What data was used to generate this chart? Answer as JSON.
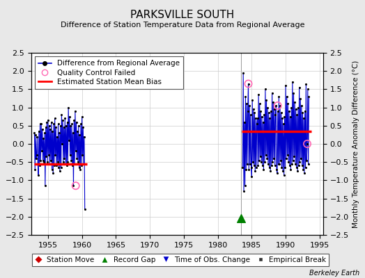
{
  "title": "PARKSVILLE SOUTH",
  "subtitle": "Difference of Station Temperature Data from Regional Average",
  "ylabel": "Monthly Temperature Anomaly Difference (°C)",
  "xlabel_credit": "Berkeley Earth",
  "xlim": [
    1952.5,
    1995.5
  ],
  "ylim": [
    -2.5,
    2.5
  ],
  "yticks": [
    -2.5,
    -2,
    -1.5,
    -1,
    -0.5,
    0,
    0.5,
    1,
    1.5,
    2,
    2.5
  ],
  "xticks": [
    1955,
    1960,
    1965,
    1970,
    1975,
    1980,
    1985,
    1990,
    1995
  ],
  "segment1_x_start": 1953.0,
  "segment1_x_end": 1960.8,
  "segment1_bias": -0.55,
  "segment2_x_start": 1983.5,
  "segment2_x_end": 1993.8,
  "segment2_bias": 0.35,
  "vertical_line_x": 1983.4,
  "record_gap_x": 1983.4,
  "record_gap_y": -2.05,
  "qc_fail_points": [
    [
      1959.08,
      -1.15
    ],
    [
      1984.5,
      1.65
    ],
    [
      1988.83,
      1.05
    ],
    [
      1993.17,
      0.0
    ]
  ],
  "seg1_months": [
    [
      1953,
      [
        0.3,
        -0.7,
        0.25,
        -0.4,
        -0.3,
        0.2,
        -0.55,
        -0.85,
        0.35,
        -0.6,
        0.55,
        -0.45
      ]
    ],
    [
      1954,
      [
        0.55,
        -0.2,
        0.4,
        -0.45,
        0.15,
        -0.5,
        0.3,
        -1.15,
        0.45,
        -0.35,
        0.6,
        -0.5
      ]
    ],
    [
      1955,
      [
        0.65,
        -0.3,
        0.5,
        -0.55,
        0.4,
        -0.45,
        0.6,
        -0.7,
        0.35,
        -0.8,
        0.55,
        -0.6
      ]
    ],
    [
      1956,
      [
        0.7,
        -0.3,
        0.45,
        -0.6,
        0.2,
        -0.5,
        0.55,
        -0.65,
        0.3,
        -0.75,
        0.5,
        -0.65
      ]
    ],
    [
      1957,
      [
        0.8,
        0.0,
        0.65,
        -0.5,
        0.45,
        -0.4,
        0.7,
        -0.55,
        0.5,
        -0.6,
        0.6,
        -0.5
      ]
    ],
    [
      1958,
      [
        1.0,
        0.1,
        0.75,
        -0.3,
        0.5,
        -0.45,
        0.55,
        -0.6,
        0.3,
        -1.15,
        0.65,
        -0.55
      ]
    ],
    [
      1959,
      [
        0.9,
        -0.2,
        0.6,
        -0.4,
        0.35,
        -0.5,
        0.5,
        -0.65,
        0.25,
        -0.7,
        0.55,
        -0.6
      ]
    ],
    [
      1960,
      [
        0.75,
        -0.3,
        0.45,
        -0.55,
        0.2,
        -1.8,
        null,
        null,
        null,
        null,
        null,
        null
      ]
    ]
  ],
  "seg2_months": [
    [
      1983,
      [
        null,
        null,
        null,
        null,
        null,
        null,
        null,
        null,
        -0.65,
        1.95,
        -1.3,
        0.6
      ]
    ],
    [
      1984,
      [
        -1.15,
        1.3,
        -0.7,
        1.1,
        -0.55,
        0.9,
        1.65,
        -0.7,
        1.05,
        -0.55,
        0.8,
        -0.65
      ]
    ],
    [
      1985,
      [
        -0.9,
        1.2,
        -0.5,
        0.95,
        -0.6,
        0.85,
        -0.75,
        0.7,
        -0.65,
        0.55,
        0.7,
        -0.6
      ]
    ],
    [
      1986,
      [
        1.35,
        -0.45,
        1.1,
        -0.35,
        0.9,
        -0.5,
        0.75,
        -0.6,
        0.6,
        -0.7,
        0.8,
        -0.5
      ]
    ],
    [
      1987,
      [
        1.5,
        -0.3,
        1.2,
        -0.4,
        1.0,
        -0.55,
        0.85,
        -0.65,
        0.7,
        -0.75,
        0.9,
        -0.6
      ]
    ],
    [
      1988,
      [
        1.4,
        -0.5,
        1.15,
        -0.4,
        0.95,
        -0.6,
        0.8,
        1.05,
        -0.7,
        -0.8,
        0.9,
        -0.55
      ]
    ],
    [
      1989,
      [
        1.3,
        -0.55,
        1.05,
        -0.45,
        0.85,
        -0.65,
        0.7,
        -0.75,
        0.55,
        -0.85,
        0.75,
        -0.65
      ]
    ],
    [
      1990,
      [
        1.6,
        -0.4,
        1.3,
        -0.3,
        1.1,
        -0.5,
        0.9,
        -0.6,
        0.75,
        -0.7,
        1.0,
        -0.55
      ]
    ],
    [
      1991,
      [
        1.7,
        -0.45,
        1.4,
        -0.35,
        1.15,
        -0.55,
        0.95,
        -0.65,
        0.8,
        -0.75,
        1.0,
        -0.6
      ]
    ],
    [
      1992,
      [
        1.55,
        -0.5,
        1.25,
        -0.4,
        1.05,
        -0.6,
        0.85,
        -0.7,
        0.7,
        -0.8,
        0.9,
        -0.65
      ]
    ],
    [
      1993,
      [
        1.65,
        -0.45,
        0.0,
        1.5,
        -0.55,
        1.3,
        null,
        null,
        null,
        null,
        null,
        null
      ]
    ]
  ],
  "bg_color": "#e8e8e8",
  "plot_bg_color": "#ffffff",
  "line_color": "#0000cc",
  "marker_color": "#000000",
  "bias_color": "#ff0000",
  "qc_color": "#ff69b4",
  "gap_marker_color": "#008000"
}
